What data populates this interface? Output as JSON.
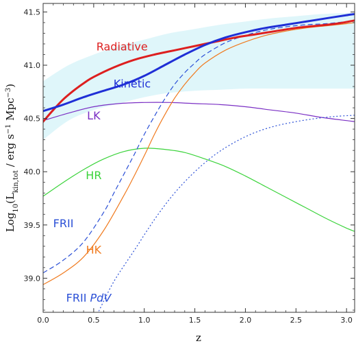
{
  "chart_data": {
    "type": "line",
    "xlabel": "z",
    "ylabel_parts": {
      "log": "Log",
      "sub10": "10",
      "open": "(L",
      "subkin": "kin,tot",
      "units": " / erg s",
      "exp1": "−1",
      "mpc": " Mpc",
      "exp3": "−3",
      "close": ")"
    },
    "xlim": [
      0.0,
      3.08
    ],
    "ylim": [
      38.68,
      41.58
    ],
    "x_ticks": [
      0.0,
      0.5,
      1.0,
      1.5,
      2.0,
      2.5,
      3.0
    ],
    "x_tick_labels": [
      "0.0",
      "0.5",
      "1.0",
      "1.5",
      "2.0",
      "2.5",
      "3.0"
    ],
    "y_ticks": [
      39.0,
      39.5,
      40.0,
      40.5,
      41.0,
      41.5
    ],
    "y_tick_labels": [
      "39.0",
      "39.5",
      "40.0",
      "40.5",
      "41.0",
      "41.5"
    ],
    "band": {
      "name": "Kinetic uncertainty",
      "color": "#dff6fa",
      "x": [
        0.0,
        0.25,
        0.5,
        0.75,
        1.0,
        1.25,
        1.5,
        1.75,
        2.0,
        2.25,
        2.5,
        2.75,
        3.0,
        3.08
      ],
      "upper": [
        40.85,
        41.0,
        41.1,
        41.18,
        41.24,
        41.3,
        41.34,
        41.38,
        41.41,
        41.44,
        41.46,
        41.48,
        41.49,
        41.49
      ],
      "lower": [
        40.3,
        40.48,
        40.58,
        40.64,
        40.7,
        40.74,
        40.76,
        40.77,
        40.78,
        40.78,
        40.78,
        40.78,
        40.78,
        40.78
      ]
    },
    "series": [
      {
        "name": "Radiative",
        "color": "#dd1f1f",
        "width": 3,
        "dash": "",
        "x": [
          0.0,
          0.1,
          0.2,
          0.3,
          0.4,
          0.5,
          0.7,
          0.9,
          1.1,
          1.3,
          1.5,
          1.7,
          1.9,
          2.1,
          2.3,
          2.5,
          2.7,
          2.9,
          3.08
        ],
        "y": [
          40.47,
          40.58,
          40.68,
          40.76,
          40.83,
          40.89,
          40.98,
          41.05,
          41.1,
          41.14,
          41.18,
          41.22,
          41.26,
          41.29,
          41.32,
          41.35,
          41.37,
          41.39,
          41.42
        ]
      },
      {
        "name": "Kinetic",
        "color": "#1f2fd6",
        "width": 3,
        "dash": "",
        "x": [
          0.0,
          0.2,
          0.4,
          0.6,
          0.8,
          1.0,
          1.2,
          1.4,
          1.6,
          1.8,
          2.0,
          2.2,
          2.4,
          2.6,
          2.8,
          3.0,
          3.08
        ],
        "y": [
          40.57,
          40.63,
          40.7,
          40.76,
          40.82,
          40.9,
          41.0,
          41.1,
          41.19,
          41.26,
          41.31,
          41.35,
          41.38,
          41.41,
          41.44,
          41.47,
          41.48
        ]
      },
      {
        "name": "LK",
        "color": "#7a2fc4",
        "width": 1.2,
        "dash": "",
        "x": [
          0.0,
          0.25,
          0.5,
          0.75,
          1.0,
          1.25,
          1.5,
          1.75,
          2.0,
          2.25,
          2.5,
          2.75,
          3.0,
          3.08
        ],
        "y": [
          40.48,
          40.55,
          40.61,
          40.64,
          40.65,
          40.65,
          40.64,
          40.63,
          40.61,
          40.58,
          40.55,
          40.51,
          40.48,
          40.47
        ]
      },
      {
        "name": "HR",
        "color": "#3ad33a",
        "width": 1.2,
        "dash": "",
        "x": [
          0.0,
          0.2,
          0.4,
          0.6,
          0.8,
          1.0,
          1.2,
          1.4,
          1.6,
          1.8,
          2.0,
          2.2,
          2.4,
          2.6,
          2.8,
          3.0,
          3.08
        ],
        "y": [
          39.77,
          39.9,
          40.02,
          40.12,
          40.19,
          40.22,
          40.21,
          40.18,
          40.12,
          40.05,
          39.96,
          39.86,
          39.76,
          39.66,
          39.56,
          39.47,
          39.44
        ]
      },
      {
        "name": "HK",
        "color": "#f07a1e",
        "width": 1.2,
        "dash": "",
        "x": [
          0.0,
          0.2,
          0.4,
          0.6,
          0.8,
          0.9,
          1.0,
          1.1,
          1.2,
          1.3,
          1.4,
          1.5,
          1.6,
          1.8,
          2.0,
          2.2,
          2.4,
          2.6,
          2.8,
          3.0,
          3.08
        ],
        "y": [
          38.94,
          39.05,
          39.2,
          39.45,
          39.78,
          39.96,
          40.15,
          40.35,
          40.53,
          40.69,
          40.82,
          40.93,
          41.02,
          41.14,
          41.22,
          41.28,
          41.32,
          41.35,
          41.37,
          41.39,
          41.4
        ]
      },
      {
        "name": "FRII",
        "color": "#2a4fd6",
        "width": 1.2,
        "dash": "7,4",
        "x": [
          0.0,
          0.2,
          0.4,
          0.6,
          0.7,
          0.8,
          0.9,
          1.0,
          1.1,
          1.2,
          1.3,
          1.4,
          1.5,
          1.6,
          1.8,
          2.0,
          2.2,
          2.4,
          2.6,
          2.8,
          3.0,
          3.08
        ],
        "y": [
          39.05,
          39.17,
          39.34,
          39.62,
          39.8,
          39.98,
          40.16,
          40.35,
          40.52,
          40.68,
          40.82,
          40.93,
          41.02,
          41.1,
          41.21,
          41.28,
          41.33,
          41.36,
          41.38,
          41.39,
          41.41,
          41.42
        ]
      },
      {
        "name": "FRII PdV",
        "color": "#2a4fd6",
        "width": 1.2,
        "dash": "2,3",
        "x": [
          0.55,
          0.7,
          0.9,
          1.1,
          1.3,
          1.5,
          1.7,
          1.9,
          2.1,
          2.3,
          2.5,
          2.7,
          2.9,
          3.08
        ],
        "y": [
          38.69,
          38.97,
          39.26,
          39.55,
          39.8,
          40.0,
          40.16,
          40.28,
          40.37,
          40.43,
          40.47,
          40.5,
          40.52,
          40.53
        ]
      }
    ],
    "labels": [
      {
        "key": "Radiative",
        "text": "Radiative",
        "color": "#dd1f1f",
        "x": 0.78,
        "y": 41.14
      },
      {
        "key": "Kinetic",
        "text": "Kinetic",
        "color": "#1f2fd6",
        "x": 0.88,
        "y": 40.79
      },
      {
        "key": "LK",
        "text": "LK",
        "color": "#7a2fc4",
        "x": 0.5,
        "y": 40.49
      },
      {
        "key": "HR",
        "text": "HR",
        "color": "#3ad33a",
        "x": 0.5,
        "y": 39.93
      },
      {
        "key": "HK",
        "text": "HK",
        "color": "#f07a1e",
        "x": 0.5,
        "y": 39.23
      },
      {
        "key": "FRII",
        "text": "FRII",
        "color": "#2a4fd6",
        "x": 0.2,
        "y": 39.48
      },
      {
        "key": "FRII-PdV",
        "text": "FRII ",
        "italic_suffix": "PdV",
        "color": "#2a4fd6",
        "x": 0.45,
        "y": 38.78
      }
    ]
  }
}
